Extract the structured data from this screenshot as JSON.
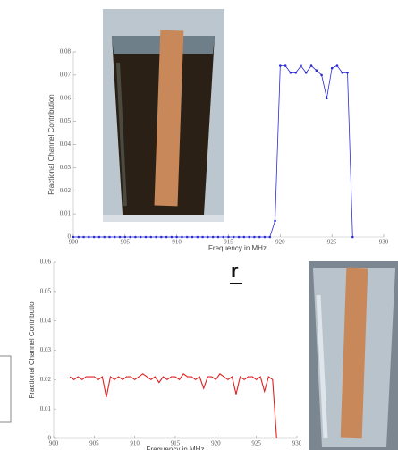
{
  "slide_text": "r",
  "chart_data": [
    {
      "type": "line",
      "color": "#2b2bd6",
      "markers": true,
      "xlabel": "Frequency in MHz",
      "ylabel": "Fractional Channel Contribution",
      "x": [
        900,
        900.5,
        901,
        901.5,
        902,
        902.5,
        903,
        903.5,
        904,
        904.5,
        905,
        905.5,
        906,
        906.5,
        907,
        907.5,
        908,
        908.5,
        909,
        909.5,
        910,
        910.5,
        911,
        911.5,
        912,
        912.5,
        913,
        913.5,
        914,
        914.5,
        915,
        915.5,
        916,
        916.5,
        917,
        917.5,
        918,
        918.5,
        919,
        919.5,
        920,
        920.5,
        921,
        921.5,
        922,
        922.5,
        923,
        923.5,
        924,
        924.5,
        925,
        925.5,
        926,
        926.5,
        927
      ],
      "values": [
        0,
        0,
        0,
        0,
        0,
        0,
        0,
        0,
        0,
        0,
        0,
        0,
        0,
        0,
        0,
        0,
        0,
        0,
        0,
        0,
        0,
        0,
        0,
        0,
        0,
        0,
        0,
        0,
        0,
        0,
        0,
        0,
        0,
        0,
        0,
        0,
        0,
        0,
        0,
        0.007,
        0.074,
        0.074,
        0.071,
        0.071,
        0.074,
        0.071,
        0.074,
        0.072,
        0.07,
        0.06,
        0.073,
        0.074,
        0.071,
        0.071,
        0
      ],
      "xlim": [
        900,
        930
      ],
      "xticks": [
        900,
        905,
        910,
        915,
        920,
        925,
        930
      ],
      "ylim": [
        0,
        0.08
      ],
      "yticks": [
        0,
        0.01,
        0.02,
        0.03,
        0.04,
        0.05,
        0.06,
        0.07,
        0.08
      ]
    },
    {
      "type": "line",
      "color": "#e02020",
      "markers": false,
      "xlabel": "Frequency in MHz",
      "ylabel": "Fractional Channel Contributio",
      "x": [
        902,
        902.5,
        903,
        903.5,
        904,
        904.5,
        905,
        905.5,
        906,
        906.5,
        907,
        907.5,
        908,
        908.5,
        909,
        909.5,
        910,
        910.5,
        911,
        911.5,
        912,
        912.5,
        913,
        913.5,
        914,
        914.5,
        915,
        915.5,
        916,
        916.5,
        917,
        917.5,
        918,
        918.5,
        919,
        919.5,
        920,
        920.5,
        921,
        921.5,
        922,
        922.5,
        923,
        923.5,
        924,
        924.5,
        925,
        925.5,
        926,
        926.5,
        927,
        927.5
      ],
      "values": [
        0.021,
        0.02,
        0.021,
        0.02,
        0.021,
        0.021,
        0.021,
        0.02,
        0.021,
        0.014,
        0.021,
        0.02,
        0.021,
        0.02,
        0.021,
        0.021,
        0.02,
        0.021,
        0.022,
        0.021,
        0.02,
        0.021,
        0.019,
        0.021,
        0.02,
        0.021,
        0.021,
        0.02,
        0.022,
        0.021,
        0.021,
        0.02,
        0.021,
        0.017,
        0.021,
        0.021,
        0.02,
        0.022,
        0.021,
        0.02,
        0.021,
        0.015,
        0.021,
        0.02,
        0.021,
        0.021,
        0.02,
        0.021,
        0.016,
        0.021,
        0.02,
        0
      ],
      "xlim": [
        900,
        930
      ],
      "xticks": [
        900,
        905,
        910,
        915,
        920,
        925,
        930
      ],
      "ylim": [
        0,
        0.06
      ],
      "yticks": [
        0,
        0.01,
        0.02,
        0.03,
        0.04,
        0.05,
        0.06
      ]
    }
  ]
}
